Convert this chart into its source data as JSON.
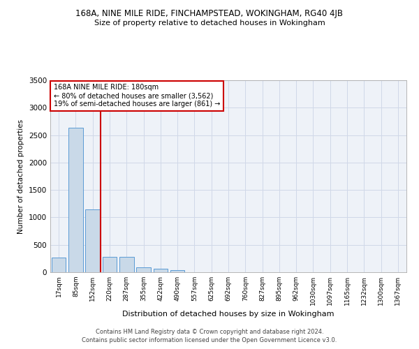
{
  "title": "168A, NINE MILE RIDE, FINCHAMPSTEAD, WOKINGHAM, RG40 4JB",
  "subtitle": "Size of property relative to detached houses in Wokingham",
  "xlabel": "Distribution of detached houses by size in Wokingham",
  "ylabel": "Number of detached properties",
  "bar_labels": [
    "17sqm",
    "85sqm",
    "152sqm",
    "220sqm",
    "287sqm",
    "355sqm",
    "422sqm",
    "490sqm",
    "557sqm",
    "625sqm",
    "692sqm",
    "760sqm",
    "827sqm",
    "895sqm",
    "962sqm",
    "1030sqm",
    "1097sqm",
    "1165sqm",
    "1232sqm",
    "1300sqm",
    "1367sqm"
  ],
  "bar_values": [
    270,
    2640,
    1150,
    280,
    280,
    90,
    60,
    40,
    0,
    0,
    0,
    0,
    0,
    0,
    0,
    0,
    0,
    0,
    0,
    0,
    0
  ],
  "bar_color": "#c9d9e8",
  "bar_edge_color": "#5b9bd5",
  "grid_color": "#d0d8e8",
  "background_color": "#eef2f8",
  "vline_x": 2.47,
  "vline_color": "#cc0000",
  "annotation_text": "168A NINE MILE RIDE: 180sqm\n← 80% of detached houses are smaller (3,562)\n19% of semi-detached houses are larger (861) →",
  "annotation_box_color": "#cc0000",
  "annotation_text_color": "#000000",
  "ylim": [
    0,
    3500
  ],
  "yticks": [
    0,
    500,
    1000,
    1500,
    2000,
    2500,
    3000,
    3500
  ],
  "footer_line1": "Contains HM Land Registry data © Crown copyright and database right 2024.",
  "footer_line2": "Contains public sector information licensed under the Open Government Licence v3.0."
}
